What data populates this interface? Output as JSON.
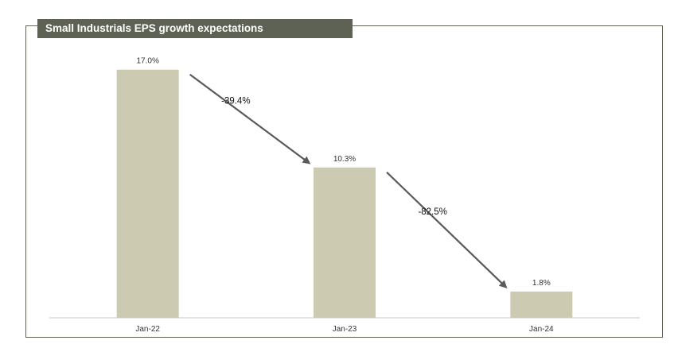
{
  "chart_data": {
    "type": "bar",
    "title": "Small Industrials EPS growth expectations",
    "categories": [
      "Jan-22",
      "Jan-23",
      "Jan-24"
    ],
    "values": [
      17.0,
      10.3,
      1.8
    ],
    "value_labels": [
      "17.0%",
      "10.3%",
      "1.8%"
    ],
    "ylim": [
      0,
      18.4
    ],
    "xlabel": "",
    "ylabel": "",
    "grid": false,
    "annotations": [
      {
        "from": 0,
        "to": 1,
        "label": "-39.4%"
      },
      {
        "from": 1,
        "to": 2,
        "label": "-82.5%"
      }
    ],
    "colors": {
      "bar": "#cccbb2",
      "title_bg": "#5e6255",
      "arrow": "#5a5a5a"
    }
  }
}
